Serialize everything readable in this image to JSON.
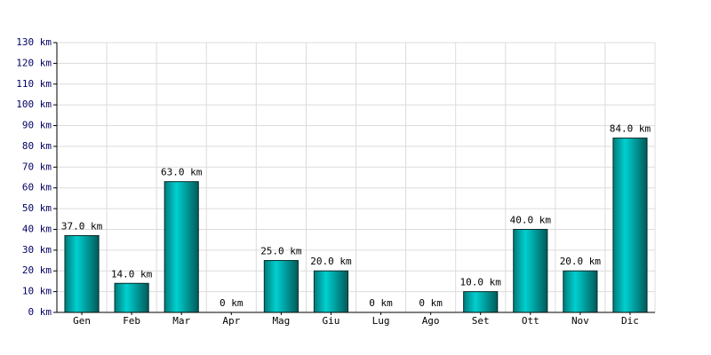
{
  "chart_data": {
    "type": "bar",
    "categories": [
      "Gen",
      "Feb",
      "Mar",
      "Apr",
      "Mag",
      "Giu",
      "Lug",
      "Ago",
      "Set",
      "Ott",
      "Nov",
      "Dic"
    ],
    "values": [
      37,
      14,
      63,
      0,
      25,
      20,
      0,
      0,
      10,
      40,
      20,
      84
    ],
    "value_labels": [
      "37.0 km",
      "14.0 km",
      "63.0 km",
      "0 km",
      "25.0 km",
      "20.0 km",
      "0 km",
      "0 km",
      "10.0 km",
      "40.0 km",
      "20.0 km",
      "84.0 km"
    ],
    "color": "#00d0d0",
    "ylim": [
      0,
      130
    ],
    "yticks": [
      {
        "value": 0,
        "label": "0 km"
      },
      {
        "value": 10,
        "label": "10 km"
      },
      {
        "value": 20,
        "label": "20 km"
      },
      {
        "value": 30,
        "label": "30 km"
      },
      {
        "value": 40,
        "label": "40 km"
      },
      {
        "value": 50,
        "label": "50 km"
      },
      {
        "value": 60,
        "label": "60 km"
      },
      {
        "value": 70,
        "label": "70 km"
      },
      {
        "value": 80,
        "label": "80 km"
      },
      {
        "value": 90,
        "label": "90 km"
      },
      {
        "value": 100,
        "label": "100 km"
      },
      {
        "value": 110,
        "label": "110 km"
      },
      {
        "value": 120,
        "label": "120 km"
      },
      {
        "value": 130,
        "label": "130 km"
      }
    ],
    "grid": true
  }
}
